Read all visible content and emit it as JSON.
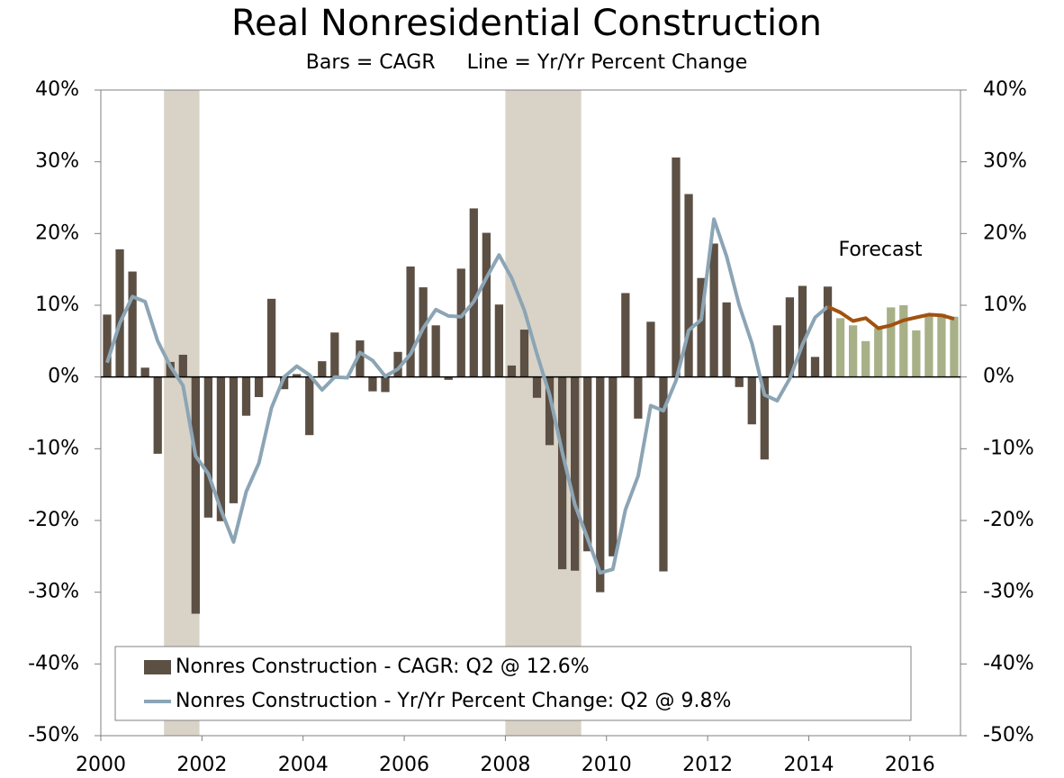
{
  "chart_data": {
    "type": "bar_line",
    "title": "Real Nonresidential Construction",
    "subtitle": "Bars = CAGR     Line = Yr/Yr Percent Change",
    "annotation": "Forecast",
    "x": [
      2000.125,
      2000.375,
      2000.625,
      2000.875,
      2001.125,
      2001.375,
      2001.625,
      2001.875,
      2002.125,
      2002.375,
      2002.625,
      2002.875,
      2003.125,
      2003.375,
      2003.625,
      2003.875,
      2004.125,
      2004.375,
      2004.625,
      2004.875,
      2005.125,
      2005.375,
      2005.625,
      2005.875,
      2006.125,
      2006.375,
      2006.625,
      2006.875,
      2007.125,
      2007.375,
      2007.625,
      2007.875,
      2008.125,
      2008.375,
      2008.625,
      2008.875,
      2009.125,
      2009.375,
      2009.625,
      2009.875,
      2010.125,
      2010.375,
      2010.625,
      2010.875,
      2011.125,
      2011.375,
      2011.625,
      2011.875,
      2012.125,
      2012.375,
      2012.625,
      2012.875,
      2013.125,
      2013.375,
      2013.625,
      2013.875,
      2014.125,
      2014.375,
      2014.625,
      2014.875,
      2015.125,
      2015.375,
      2015.625,
      2015.875,
      2016.125,
      2016.375,
      2016.625,
      2016.875
    ],
    "forecast_from": 2014.5,
    "series": [
      {
        "name": "Nonres Construction - CAGR: Q2 @ 12.6%",
        "kind": "bar",
        "color": "#5c4f43",
        "forecast_color": "#a8b088",
        "values": [
          8.7,
          17.8,
          14.7,
          1.3,
          -10.7,
          2.1,
          3.1,
          -33.0,
          -19.6,
          -20.1,
          -17.6,
          -5.4,
          -2.8,
          10.9,
          -1.7,
          0.4,
          -8.1,
          2.2,
          6.2,
          0.1,
          5.1,
          -2.0,
          -2.1,
          3.5,
          15.4,
          12.5,
          7.2,
          -0.4,
          15.1,
          23.5,
          20.1,
          10.1,
          1.6,
          6.6,
          -2.9,
          -9.5,
          -26.8,
          -27.0,
          -24.3,
          -30.0,
          -25.0,
          11.7,
          -5.8,
          7.7,
          -27.1,
          30.6,
          25.5,
          13.8,
          18.6,
          10.4,
          -1.4,
          -6.6,
          -11.5,
          7.2,
          11.1,
          12.7,
          2.8,
          12.6,
          8.2,
          7.2,
          5.0,
          6.8,
          9.7,
          10.0,
          6.5,
          8.6,
          8.8,
          8.4
        ]
      },
      {
        "name": "Nonres Construction - Yr/Yr Percent Change: Q2 @ 9.8%",
        "kind": "line",
        "color": "#8ca5b5",
        "values": [
          2.0,
          7.5,
          11.2,
          10.5,
          5.0,
          1.5,
          -1.2,
          -11.0,
          -13.5,
          -18.5,
          -23.0,
          -16.0,
          -12.0,
          -4.3,
          0.0,
          1.5,
          0.3,
          -1.8,
          0.0,
          -0.1,
          3.4,
          2.3,
          0.1,
          1.1,
          3.2,
          6.8,
          9.4,
          8.5,
          8.4,
          10.5,
          13.8,
          17.0,
          13.8,
          9.3,
          3.2,
          -2.5,
          -10.5,
          -17.8,
          -22.5,
          -27.3,
          -26.8,
          -18.5,
          -13.8,
          -4.0,
          -4.7,
          -0.5,
          6.5,
          8.0,
          22.0,
          16.8,
          10.0,
          4.7,
          -2.5,
          -3.3,
          -0.2,
          4.5,
          8.3,
          9.8,
          null,
          null,
          null,
          null,
          null,
          null,
          null,
          null,
          null,
          null
        ]
      },
      {
        "kind": "line",
        "color": "#a0520f",
        "values": [
          null,
          null,
          null,
          null,
          null,
          null,
          null,
          null,
          null,
          null,
          null,
          null,
          null,
          null,
          null,
          null,
          null,
          null,
          null,
          null,
          null,
          null,
          null,
          null,
          null,
          null,
          null,
          null,
          null,
          null,
          null,
          null,
          null,
          null,
          null,
          null,
          null,
          null,
          null,
          null,
          null,
          null,
          null,
          null,
          null,
          null,
          null,
          null,
          null,
          null,
          null,
          null,
          null,
          null,
          null,
          null,
          null,
          9.8,
          9.0,
          7.8,
          8.2,
          6.8,
          7.2,
          7.9,
          8.3,
          8.7,
          8.6,
          8.1
        ]
      }
    ],
    "shaded_periods": [
      [
        2001.25,
        2001.95
      ],
      [
        2008.0,
        2009.5
      ]
    ],
    "shade_color": "#d9d3c7",
    "xlim": [
      2000,
      2017
    ],
    "xticks": [
      2000,
      2002,
      2004,
      2006,
      2008,
      2010,
      2012,
      2014,
      2016
    ],
    "ylim": [
      -50,
      40
    ],
    "yticks": [
      {
        "value": -50,
        "label": "-50%"
      },
      {
        "value": -40,
        "label": "-40%"
      },
      {
        "value": -30,
        "label": "-30%"
      },
      {
        "value": -20,
        "label": "-20%"
      },
      {
        "value": -10,
        "label": "-10%"
      },
      {
        "value": 0,
        "label": "0%"
      },
      {
        "value": 10,
        "label": "10%"
      },
      {
        "value": 20,
        "label": "20%"
      },
      {
        "value": 30,
        "label": "30%"
      },
      {
        "value": 40,
        "label": "40%"
      }
    ],
    "y2lim": [
      -50,
      40
    ],
    "y2ticks": [
      {
        "value": -50,
        "label": "-50%"
      },
      {
        "value": -40,
        "label": "-40%"
      },
      {
        "value": -30,
        "label": "-30%"
      },
      {
        "value": -20,
        "label": "-20%"
      },
      {
        "value": -10,
        "label": "-10%"
      },
      {
        "value": 0,
        "label": "0%"
      },
      {
        "value": 10,
        "label": "10%"
      },
      {
        "value": 20,
        "label": "20%"
      },
      {
        "value": 30,
        "label": "30%"
      },
      {
        "value": 40,
        "label": "40%"
      }
    ],
    "legend": "bottom-left",
    "grid": false
  }
}
